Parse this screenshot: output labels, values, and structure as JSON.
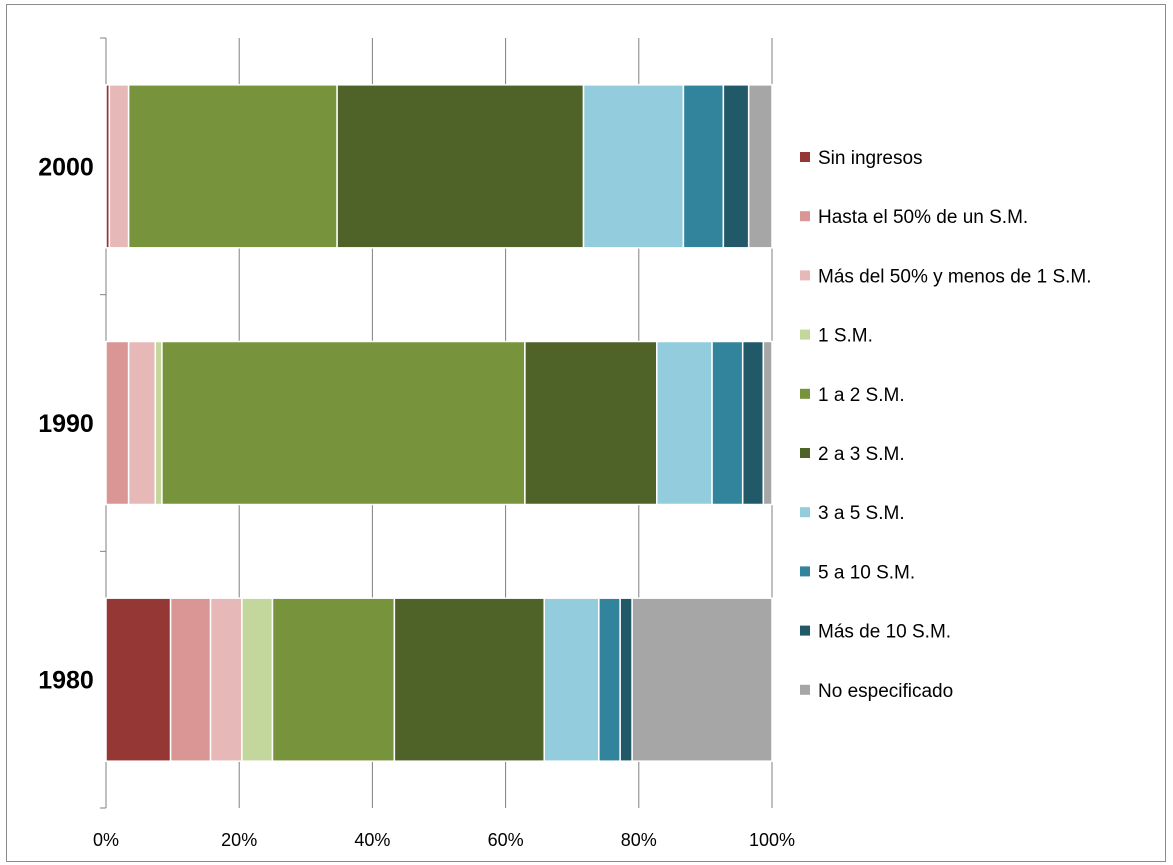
{
  "chart_data": {
    "type": "bar",
    "orientation": "horizontal",
    "stacked": "percent",
    "categories": [
      "2000",
      "1990",
      "1980"
    ],
    "series": [
      {
        "name": "Sin ingresos",
        "color": "#953735",
        "values": [
          0.5,
          0.0,
          9.7
        ]
      },
      {
        "name": "Hasta el 50% de un S.M.",
        "color": "#d99694",
        "values": [
          0.0,
          3.4,
          6.0
        ]
      },
      {
        "name": "Más del 50% y menos de 1 S.M.",
        "color": "#e6b9b8",
        "values": [
          2.9,
          4.0,
          4.7
        ]
      },
      {
        "name": "1 S.M.",
        "color": "#c3d69b",
        "values": [
          0.0,
          1.0,
          4.6
        ]
      },
      {
        "name": " 1 a 2 S.M.",
        "color": "#77933c",
        "values": [
          31.3,
          54.5,
          18.3
        ]
      },
      {
        "name": " 2 a 3 S.M.",
        "color": "#4f6228",
        "values": [
          37.0,
          19.8,
          22.5
        ]
      },
      {
        "name": "3 a 5 S.M.",
        "color": "#93cddd",
        "values": [
          15.0,
          8.3,
          8.2
        ]
      },
      {
        "name": " 5 a 10 S.M.",
        "color": "#31849b",
        "values": [
          6.0,
          4.6,
          3.2
        ]
      },
      {
        "name": "Más de 10 S.M.",
        "color": "#215968",
        "values": [
          3.8,
          3.1,
          1.8
        ]
      },
      {
        "name": "No especificado",
        "color": "#a6a6a6",
        "values": [
          3.5,
          1.3,
          21.0
        ]
      }
    ],
    "x_ticks": [
      "0%",
      "20%",
      "40%",
      "60%",
      "80%",
      "100%"
    ],
    "xlim": [
      0,
      100
    ],
    "grid": true,
    "legend_position": "right"
  }
}
